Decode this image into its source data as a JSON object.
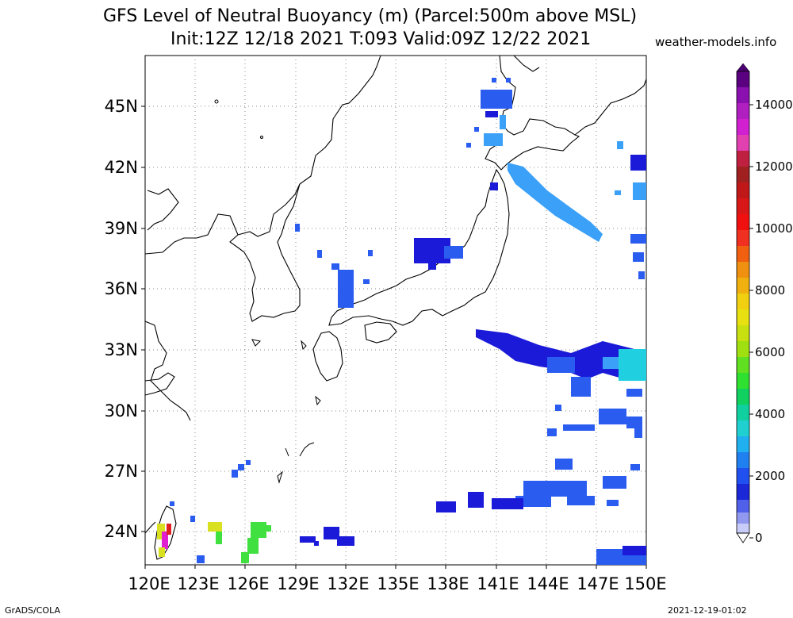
{
  "title_line1": "GFS Level of Neutral Buoyancy (m) (Parcel:500m above MSL)",
  "title_line2": "Init:12Z 12/18 2021 T:093 Valid:09Z 12/22 2021",
  "site": "weather-models.info",
  "lat_labels": [
    "45N",
    "42N",
    "39N",
    "36N",
    "33N",
    "30N",
    "27N",
    "24N"
  ],
  "lon_labels": [
    "120E",
    "123E",
    "126E",
    "129E",
    "132E",
    "135E",
    "138E",
    "141E",
    "144E",
    "147E",
    "150E"
  ],
  "colorbar_labels": [
    "14000",
    "12000",
    "10000",
    "8000",
    "6000",
    "4000",
    "2000",
    "0"
  ],
  "colors": {
    "blue_dark": "#1a1ad8",
    "blue_mid": "#2a5cf0",
    "blue_light": "#3aa0f8",
    "cyan": "#20d0e0",
    "green": "#40e040",
    "yellow": "#d8e020",
    "red": "#e02020",
    "magenta": "#e020d0"
  },
  "footer_left": "GrADS/COLA",
  "footer_right": "2021-12-19-01:02"
}
